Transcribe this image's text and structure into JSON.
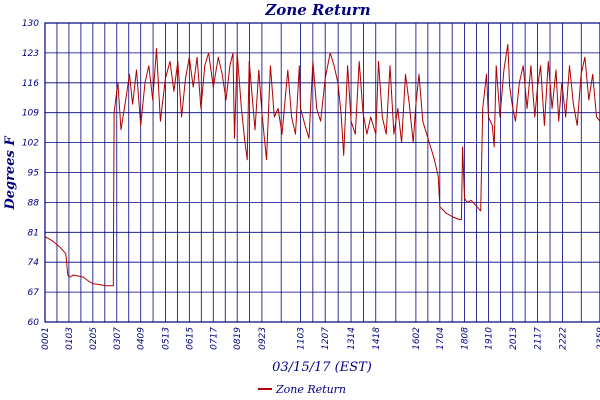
{
  "chart_data": {
    "type": "line",
    "title": "Zone Return",
    "xlabel": "03/15/17 (EST)",
    "ylabel": "Degrees F",
    "ylim": [
      60,
      130
    ],
    "yticks": [
      60,
      67,
      74,
      81,
      88,
      95,
      102,
      109,
      116,
      123,
      130
    ],
    "xlim": [
      "00:01",
      "23:59"
    ],
    "xticks": [
      "00:01",
      "01:03",
      "02:05",
      "03:07",
      "04:09",
      "05:13",
      "06:15",
      "07:17",
      "08:19",
      "09:23",
      "11:03",
      "12:07",
      "13:14",
      "14:18",
      "16:02",
      "17:04",
      "18:08",
      "19:10",
      "20:13",
      "21:17",
      "22:22",
      "23:59"
    ],
    "grid": true,
    "legend": "bottom",
    "series": [
      {
        "name": "Zone Return",
        "color": "#b00000",
        "points": [
          [
            "00:01",
            80
          ],
          [
            "00:20",
            79
          ],
          [
            "00:40",
            77.5
          ],
          [
            "00:55",
            76
          ],
          [
            "01:00",
            71
          ],
          [
            "01:05",
            70.5
          ],
          [
            "01:15",
            71
          ],
          [
            "01:40",
            70.5
          ],
          [
            "01:55",
            69.5
          ],
          [
            "02:05",
            69
          ],
          [
            "02:40",
            68.5
          ],
          [
            "02:58",
            68.5
          ],
          [
            "03:00",
            109
          ],
          [
            "03:10",
            116
          ],
          [
            "03:18",
            105
          ],
          [
            "03:30",
            112
          ],
          [
            "03:40",
            118
          ],
          [
            "03:48",
            111
          ],
          [
            "03:58",
            119
          ],
          [
            "04:09",
            106
          ],
          [
            "04:20",
            116
          ],
          [
            "04:30",
            120
          ],
          [
            "04:40",
            112
          ],
          [
            "04:50",
            124
          ],
          [
            "05:00",
            107
          ],
          [
            "05:13",
            117
          ],
          [
            "05:25",
            121
          ],
          [
            "05:35",
            114
          ],
          [
            "05:45",
            121
          ],
          [
            "05:55",
            108
          ],
          [
            "06:05",
            117
          ],
          [
            "06:15",
            122
          ],
          [
            "06:25",
            115
          ],
          [
            "06:35",
            122
          ],
          [
            "06:45",
            110
          ],
          [
            "06:55",
            120
          ],
          [
            "07:05",
            123
          ],
          [
            "07:17",
            115
          ],
          [
            "07:30",
            122
          ],
          [
            "07:40",
            118
          ],
          [
            "07:50",
            112
          ],
          [
            "08:00",
            120
          ],
          [
            "08:08",
            123
          ],
          [
            "08:12",
            103
          ],
          [
            "08:19",
            123
          ],
          [
            "08:30",
            110
          ],
          [
            "08:38",
            103
          ],
          [
            "08:45",
            98
          ],
          [
            "08:50",
            121
          ],
          [
            "09:05",
            105
          ],
          [
            "09:15",
            119
          ],
          [
            "09:23",
            109
          ],
          [
            "09:35",
            98
          ],
          [
            "09:45",
            120
          ],
          [
            "09:55",
            108
          ],
          [
            "10:05",
            110
          ],
          [
            "10:15",
            104
          ],
          [
            "10:30",
            119
          ],
          [
            "10:40",
            108
          ],
          [
            "10:50",
            104
          ],
          [
            "11:00",
            120
          ],
          [
            "11:03",
            110
          ],
          [
            "11:15",
            106
          ],
          [
            "11:25",
            103
          ],
          [
            "11:35",
            121
          ],
          [
            "11:45",
            110
          ],
          [
            "11:55",
            107
          ],
          [
            "12:07",
            117
          ],
          [
            "12:20",
            123
          ],
          [
            "12:30",
            120
          ],
          [
            "12:40",
            116
          ],
          [
            "12:48",
            109
          ],
          [
            "12:55",
            99
          ],
          [
            "13:05",
            120
          ],
          [
            "13:14",
            107
          ],
          [
            "13:25",
            104
          ],
          [
            "13:35",
            121
          ],
          [
            "13:45",
            109
          ],
          [
            "13:55",
            104
          ],
          [
            "14:05",
            108
          ],
          [
            "14:18",
            104
          ],
          [
            "14:25",
            121
          ],
          [
            "14:35",
            108
          ],
          [
            "14:45",
            104
          ],
          [
            "14:55",
            120
          ],
          [
            "15:05",
            104
          ],
          [
            "15:15",
            110
          ],
          [
            "15:25",
            102
          ],
          [
            "15:35",
            118
          ],
          [
            "15:45",
            111
          ],
          [
            "15:55",
            102
          ],
          [
            "16:02",
            111
          ],
          [
            "16:10",
            118
          ],
          [
            "16:20",
            107
          ],
          [
            "16:30",
            104
          ],
          [
            "16:40",
            101
          ],
          [
            "16:50",
            98
          ],
          [
            "17:00",
            94
          ],
          [
            "17:04",
            87
          ],
          [
            "17:20",
            85.5
          ],
          [
            "17:40",
            84.5
          ],
          [
            "17:55",
            84
          ],
          [
            "18:00",
            84
          ],
          [
            "18:03",
            101
          ],
          [
            "18:08",
            89
          ],
          [
            "18:15",
            88
          ],
          [
            "18:25",
            88.5
          ],
          [
            "18:40",
            87
          ],
          [
            "18:50",
            86
          ],
          [
            "18:55",
            110
          ],
          [
            "19:05",
            118
          ],
          [
            "19:10",
            108
          ],
          [
            "19:20",
            106
          ],
          [
            "19:25",
            101
          ],
          [
            "19:30",
            120
          ],
          [
            "19:40",
            108
          ],
          [
            "19:50",
            119
          ],
          [
            "20:00",
            125
          ],
          [
            "20:05",
            115
          ],
          [
            "20:13",
            110
          ],
          [
            "20:20",
            107
          ],
          [
            "20:30",
            116
          ],
          [
            "20:40",
            120
          ],
          [
            "20:50",
            110
          ],
          [
            "21:00",
            120
          ],
          [
            "21:10",
            108
          ],
          [
            "21:17",
            115
          ],
          [
            "21:25",
            120
          ],
          [
            "21:35",
            106
          ],
          [
            "21:45",
            121
          ],
          [
            "21:55",
            110
          ],
          [
            "22:05",
            119
          ],
          [
            "22:12",
            107
          ],
          [
            "22:20",
            116
          ],
          [
            "22:30",
            108
          ],
          [
            "22:40",
            120
          ],
          [
            "22:50",
            111
          ],
          [
            "23:00",
            106
          ],
          [
            "23:10",
            118
          ],
          [
            "23:20",
            122
          ],
          [
            "23:30",
            112
          ],
          [
            "23:40",
            118
          ],
          [
            "23:50",
            108
          ],
          [
            "23:59",
            107
          ]
        ]
      }
    ]
  }
}
